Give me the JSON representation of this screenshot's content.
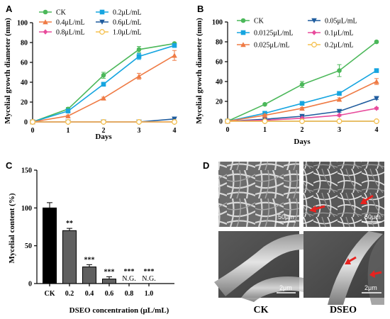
{
  "chart_data": [
    {
      "panel": "A",
      "type": "line",
      "xlabel": "Days",
      "ylabel": "Mycelial growth diameter (mm)",
      "x": [
        0,
        1,
        2,
        3,
        4
      ],
      "xlim": [
        0,
        4
      ],
      "ylim": [
        0,
        100
      ],
      "yticks": [
        0,
        20,
        40,
        60,
        80,
        100
      ],
      "legend_cols": 2,
      "series": [
        {
          "name": "CK",
          "color": "#4cb85a",
          "marker": "circle",
          "values": [
            0,
            13,
            47,
            73,
            79
          ],
          "err": [
            0,
            1.5,
            3,
            3,
            1
          ]
        },
        {
          "name": "0.2μL/mL",
          "color": "#16a5e0",
          "marker": "square",
          "values": [
            0,
            11,
            38,
            66,
            77
          ],
          "err": [
            0,
            1.5,
            2,
            3,
            1.5
          ]
        },
        {
          "name": "0.4μL/mL",
          "color": "#ef7b45",
          "marker": "triangle",
          "values": [
            0,
            6,
            24,
            46,
            67
          ],
          "err": [
            0,
            1,
            1,
            3,
            5
          ]
        },
        {
          "name": "0.6μL/mL",
          "color": "#1f5c9e",
          "marker": "triangle-down",
          "values": [
            0,
            0,
            0,
            0,
            3
          ],
          "err": [
            0,
            0,
            0,
            0,
            1
          ]
        },
        {
          "name": "0.8μL/mL",
          "color": "#e84b9c",
          "marker": "diamond",
          "values": [
            0,
            0,
            0,
            0,
            0
          ],
          "err": [
            0,
            0,
            0,
            0,
            0
          ]
        },
        {
          "name": "1.0μL/mL",
          "color": "#f5c04f",
          "marker": "circle-open",
          "values": [
            0,
            0,
            0,
            0,
            0
          ],
          "err": [
            0,
            0,
            0,
            0,
            0
          ]
        }
      ]
    },
    {
      "panel": "B",
      "type": "line",
      "xlabel": "Days",
      "ylabel": "Mycelial growth diameter (mm)",
      "x": [
        0,
        1,
        2,
        3,
        4
      ],
      "xlim": [
        0,
        4
      ],
      "ylim": [
        0,
        100
      ],
      "yticks": [
        0,
        20,
        40,
        60,
        80,
        100
      ],
      "legend_cols": 2,
      "series": [
        {
          "name": "CK",
          "color": "#4cb85a",
          "marker": "circle",
          "values": [
            0,
            17,
            37,
            51,
            80
          ],
          "err": [
            0,
            1,
            3,
            6,
            1
          ]
        },
        {
          "name": "0.05μL/mL",
          "color": "#1f5c9e",
          "marker": "triangle-down",
          "values": [
            0,
            2,
            5,
            10,
            23
          ],
          "err": [
            0,
            0.5,
            1,
            1,
            1
          ]
        },
        {
          "name": "0.0125μL/mL",
          "color": "#16a5e0",
          "marker": "square",
          "values": [
            0,
            8,
            18,
            28,
            51
          ],
          "err": [
            0,
            1,
            1,
            1.5,
            1.5
          ]
        },
        {
          "name": "0.1μL/mL",
          "color": "#e84b9c",
          "marker": "diamond",
          "values": [
            0,
            1,
            3,
            6,
            13
          ],
          "err": [
            0,
            0.5,
            0.5,
            1,
            1
          ]
        },
        {
          "name": "0.025μL/mL",
          "color": "#ef7b45",
          "marker": "triangle",
          "values": [
            0,
            6,
            13,
            22,
            40
          ],
          "err": [
            0,
            1,
            1,
            1.5,
            3
          ]
        },
        {
          "name": "0.2μL/mL",
          "color": "#f5c04f",
          "marker": "circle-open",
          "values": [
            0,
            0,
            0,
            0,
            0
          ],
          "err": [
            0,
            0,
            0,
            0,
            0
          ]
        }
      ]
    },
    {
      "panel": "C",
      "type": "bar",
      "xlabel": "DSEO concentration (μL/mL)",
      "ylabel": "Mycelial content (%)",
      "categories": [
        "CK",
        "0.2",
        "0.4",
        "0.6",
        "0.8",
        "1.0"
      ],
      "values": [
        100,
        70,
        22,
        6,
        0,
        0
      ],
      "err": [
        7,
        3,
        3,
        3,
        0,
        0
      ],
      "significance": [
        "",
        "**",
        "***",
        "***",
        "***",
        "***"
      ],
      "value_notes": [
        "",
        "",
        "",
        "",
        "N.G.",
        "N.G."
      ],
      "colors": [
        "#000000",
        "#606060",
        "#606060",
        "#606060",
        "#606060",
        "#606060"
      ],
      "ylim": [
        0,
        150
      ],
      "yticks": [
        0,
        50,
        100,
        150
      ]
    }
  ],
  "panels": {
    "a": {
      "letter": "A"
    },
    "b": {
      "letter": "B"
    },
    "c": {
      "letter": "C"
    },
    "d": {
      "letter": "D",
      "scale_top": "50μm",
      "scale_bottom": "2μm",
      "label_left": "CK",
      "label_right": "DSEO"
    }
  }
}
